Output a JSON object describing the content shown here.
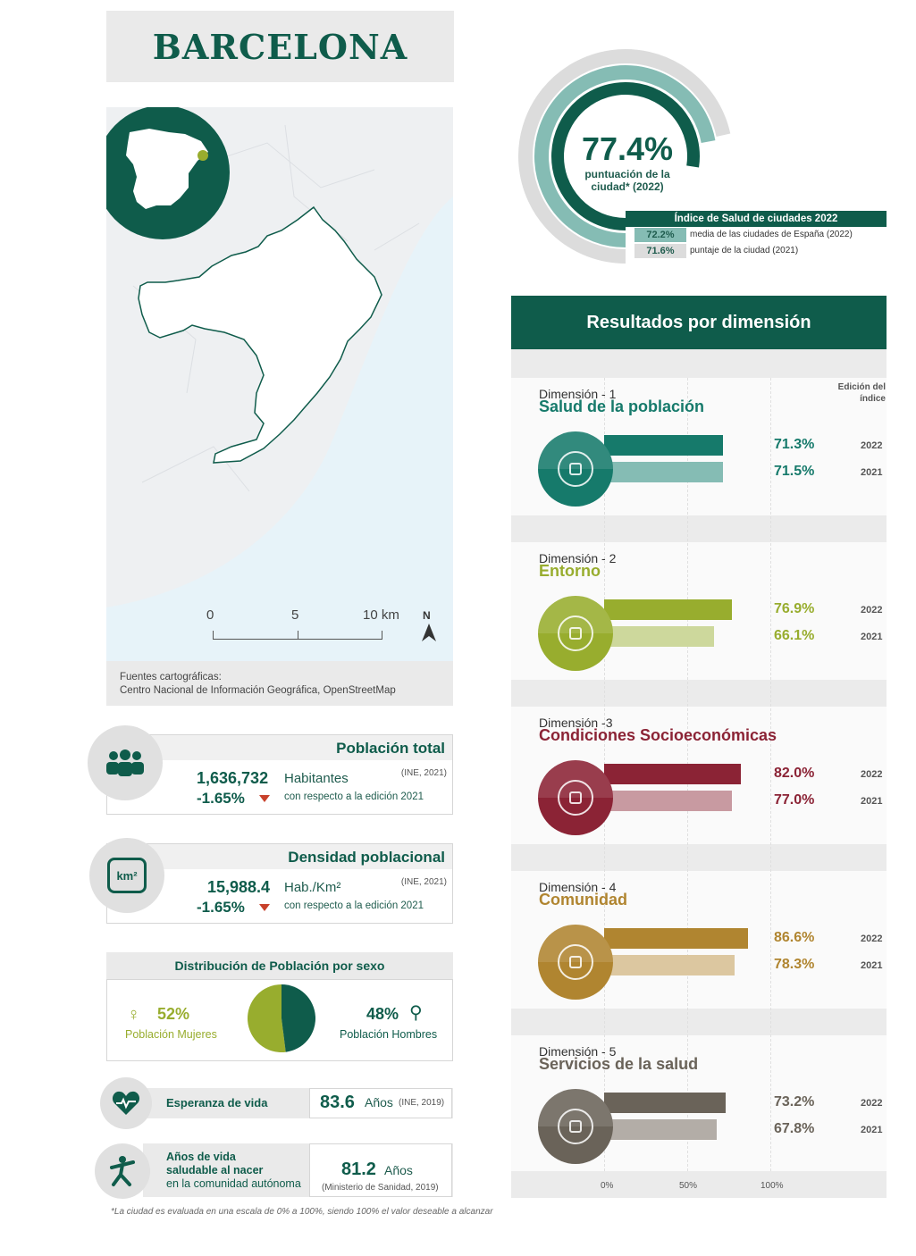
{
  "header": {
    "title": "BARCELONA"
  },
  "map": {
    "scale_labels": [
      "0",
      "5",
      "10 km"
    ],
    "north": "N",
    "source_line1": "Fuentes cartográficas:",
    "source_line2": "Centro Nacional de Información Geográfica, OpenStreetMap"
  },
  "index": {
    "score": "77.4%",
    "score_label": "puntuación de la ciudad* (2022)",
    "legend_title": "Índice de Salud de ciudades 2022",
    "rows": [
      {
        "value": "72.2%",
        "label": "media de las ciudades de España (2022)"
      },
      {
        "value": "71.6%",
        "label": "puntaje de la ciudad (2021)"
      }
    ]
  },
  "population": {
    "title": "Población total",
    "value": "1,636,732",
    "unit": "Habitantes",
    "source": "(INE, 2021)",
    "change": "-1.65%",
    "change_label": "con respecto a la edición 2021"
  },
  "density": {
    "title": "Densidad poblacional",
    "icon_text": "km²",
    "value": "15,988.4",
    "unit": "Hab./Km²",
    "source": "(INE, 2021)",
    "change": "-1.65%",
    "change_label": "con respecto a la edición 2021"
  },
  "sex": {
    "title": "Distribución de Población por sexo",
    "female_pct": "52%",
    "female_label": "Población Mujeres",
    "male_pct": "48%",
    "male_label": "Población Hombres",
    "female_share": 0.52
  },
  "life": {
    "label": "Esperanza de vida",
    "value": "83.6",
    "unit": "Años",
    "source": "(INE, 2019)"
  },
  "healthy": {
    "label1": "Años de vida",
    "label2": "saludable al nacer",
    "label3": "en la comunidad autónoma",
    "value": "81.2",
    "unit": "Años",
    "source": "(Ministerio de Sanidad, 2019)"
  },
  "footnote": "*La ciudad es evaluada en una escala de 0% a 100%, siendo 100% el valor deseable a alcanzar",
  "results": {
    "title": "Resultados por dimensión",
    "edition_label_1": "Edición del",
    "edition_label_2": "índice",
    "axis": [
      "0%",
      "50%",
      "100%"
    ]
  },
  "colors": {
    "d1": [
      "#167a6b",
      "#85bcb4"
    ],
    "d2": [
      "#98ad2e",
      "#cdd89c"
    ],
    "d3": [
      "#8b2335",
      "#c89aa1"
    ],
    "d4": [
      "#b08530",
      "#dcc7a0"
    ],
    "d5": [
      "#6a6359",
      "#b3ada7"
    ]
  },
  "chart_data": {
    "type": "bar",
    "categories": [
      "Salud de la población",
      "Entorno",
      "Condiciones Socioeconómicas",
      "Comunidad",
      "Servicios de la salud"
    ],
    "dimension_labels": [
      "Dimensión - 1",
      "Dimensión - 2",
      "Dimensión -3",
      "Dimensión - 4",
      "Dimensión - 5"
    ],
    "series": [
      {
        "name": "2022",
        "values": [
          71.3,
          76.9,
          82.0,
          86.6,
          73.2
        ],
        "labels": [
          "71.3%",
          "76.9%",
          "82.0%",
          "86.6%",
          "73.2%"
        ]
      },
      {
        "name": "2021",
        "values": [
          71.5,
          66.1,
          77.0,
          78.3,
          67.8
        ],
        "labels": [
          "71.5%",
          "66.1%",
          "77.0%",
          "78.3%",
          "67.8%"
        ]
      }
    ],
    "xlim": [
      0,
      100
    ],
    "index_rings": {
      "score_2022": 77.4,
      "spain_mean_2022": 72.2,
      "score_2021": 71.6
    }
  }
}
